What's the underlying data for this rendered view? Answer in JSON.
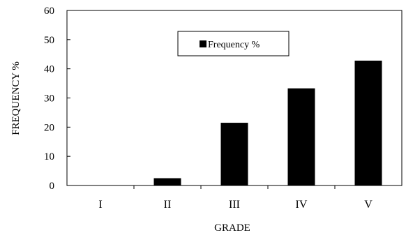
{
  "chart_data": {
    "type": "bar",
    "title": "",
    "xlabel": "GRADE",
    "ylabel": "FREQUENCY %",
    "categories": [
      "I",
      "II",
      "III",
      "IV",
      "V"
    ],
    "series": [
      {
        "name": "Frequency %",
        "values": [
          0,
          2.5,
          21.5,
          33.3,
          42.8
        ]
      }
    ],
    "ylim": [
      0,
      60
    ],
    "yticks": [
      "0",
      "10",
      "20",
      "30",
      "40",
      "50",
      "60"
    ],
    "grid": false,
    "legend": "top-center",
    "colors": {
      "bar": "#000000",
      "axis": "#000000"
    }
  }
}
